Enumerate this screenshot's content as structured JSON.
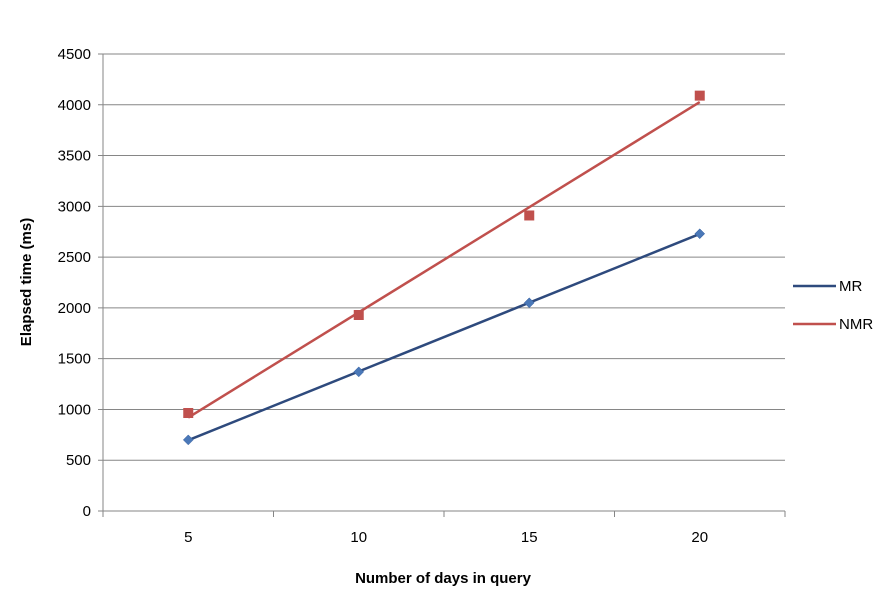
{
  "chart_data": {
    "type": "line",
    "x": [
      5,
      10,
      15,
      20
    ],
    "xlabel": "Number of days in query",
    "ylabel": "Elapsed time (ms)",
    "ylim": [
      0,
      4500
    ],
    "ytick_step": 500,
    "grid": "horizontal",
    "legend_position": "right",
    "series": [
      {
        "name": "MR",
        "values": [
          700,
          1370,
          2050,
          2730
        ],
        "color": "#2e4a7d",
        "marker_color": "#4a78b8",
        "marker": "diamond",
        "trendline": "linear"
      },
      {
        "name": "NMR",
        "values": [
          965,
          1930,
          2910,
          4090
        ],
        "color": "#c0504d",
        "marker_color": "#c0504d",
        "marker": "square",
        "trendline": "linear"
      }
    ]
  }
}
